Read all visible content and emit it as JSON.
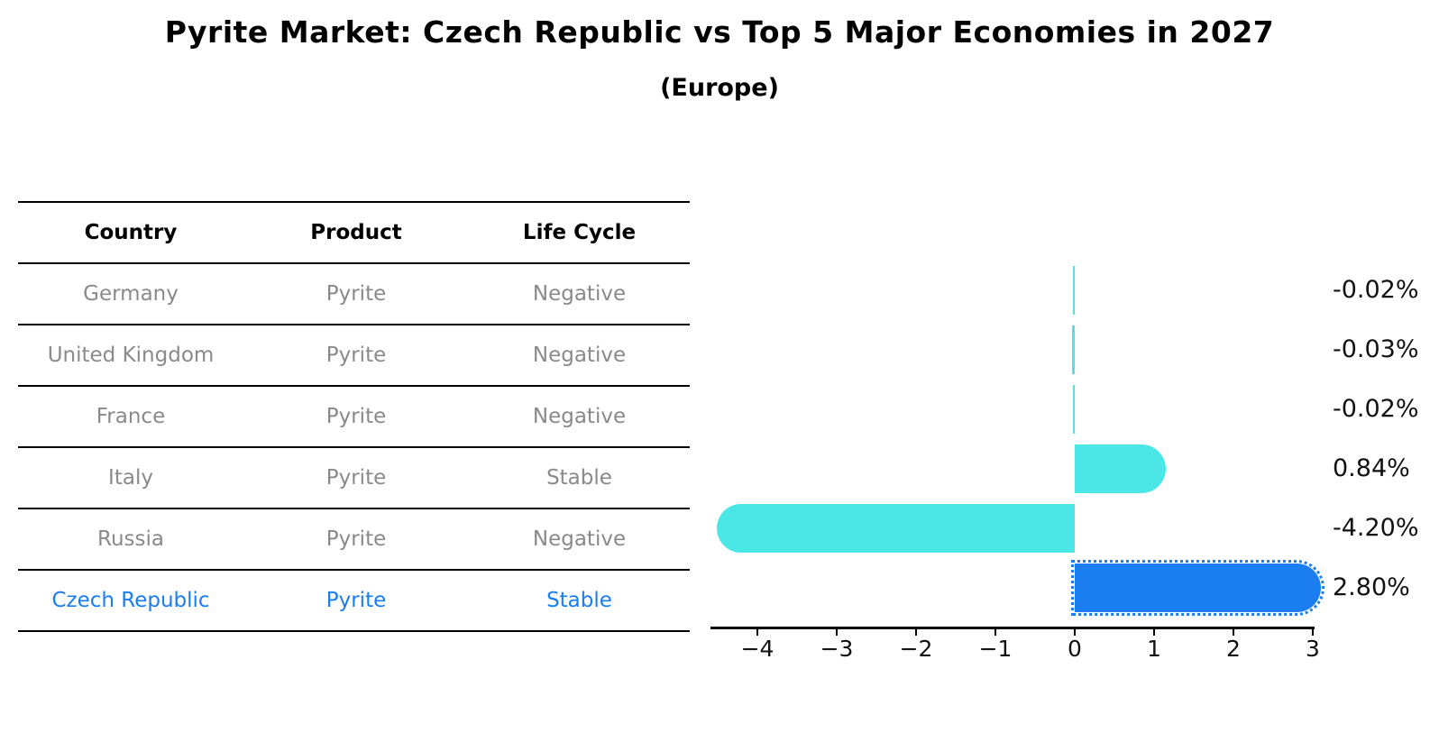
{
  "header": {
    "title": "Pyrite Market: Czech Republic vs Top 5 Major Economies in 2027",
    "subtitle": "(Europe)"
  },
  "table": {
    "columns": [
      "Country",
      "Product",
      "Life Cycle"
    ],
    "rows": [
      {
        "country": "Germany",
        "product": "Pyrite",
        "life_cycle": "Negative",
        "highlight": false
      },
      {
        "country": "United Kingdom",
        "product": "Pyrite",
        "life_cycle": "Negative",
        "highlight": false
      },
      {
        "country": "France",
        "product": "Pyrite",
        "life_cycle": "Negative",
        "highlight": false
      },
      {
        "country": "Italy",
        "product": "Pyrite",
        "life_cycle": "Stable",
        "highlight": false
      },
      {
        "country": "Russia",
        "product": "Pyrite",
        "life_cycle": "Negative",
        "highlight": false
      },
      {
        "country": "Czech Republic",
        "product": "Pyrite",
        "life_cycle": "Stable",
        "highlight": true
      }
    ]
  },
  "chart_data": {
    "type": "bar",
    "orientation": "horizontal",
    "title": "Pyrite Market: Czech Republic vs Top 5 Major Economies in 2027",
    "subtitle": "(Europe)",
    "categories": [
      "Germany",
      "United Kingdom",
      "France",
      "Italy",
      "Russia",
      "Czech Republic"
    ],
    "values": [
      -0.02,
      -0.03,
      -0.02,
      0.84,
      -4.2,
      2.8
    ],
    "value_labels": [
      "-0.02%",
      "-0.03%",
      "-0.02%",
      "0.84%",
      "-4.20%",
      "2.80%"
    ],
    "highlight_index": 5,
    "xlim": [
      -4.6,
      3.05
    ],
    "xticks": [
      -4,
      -3,
      -2,
      -1,
      0,
      1,
      2,
      3
    ],
    "xtick_labels": [
      "−4",
      "−3",
      "−2",
      "−1",
      "0",
      "1",
      "2",
      "3"
    ],
    "grid": false,
    "legend": false,
    "colors": {
      "default_bar": "#4be6e6",
      "highlight_bar": "#1a7df0",
      "row_text": "#8a8a8a",
      "highlight_text": "#1a7df0",
      "axis": "#000000",
      "label_text": "#111111"
    }
  }
}
